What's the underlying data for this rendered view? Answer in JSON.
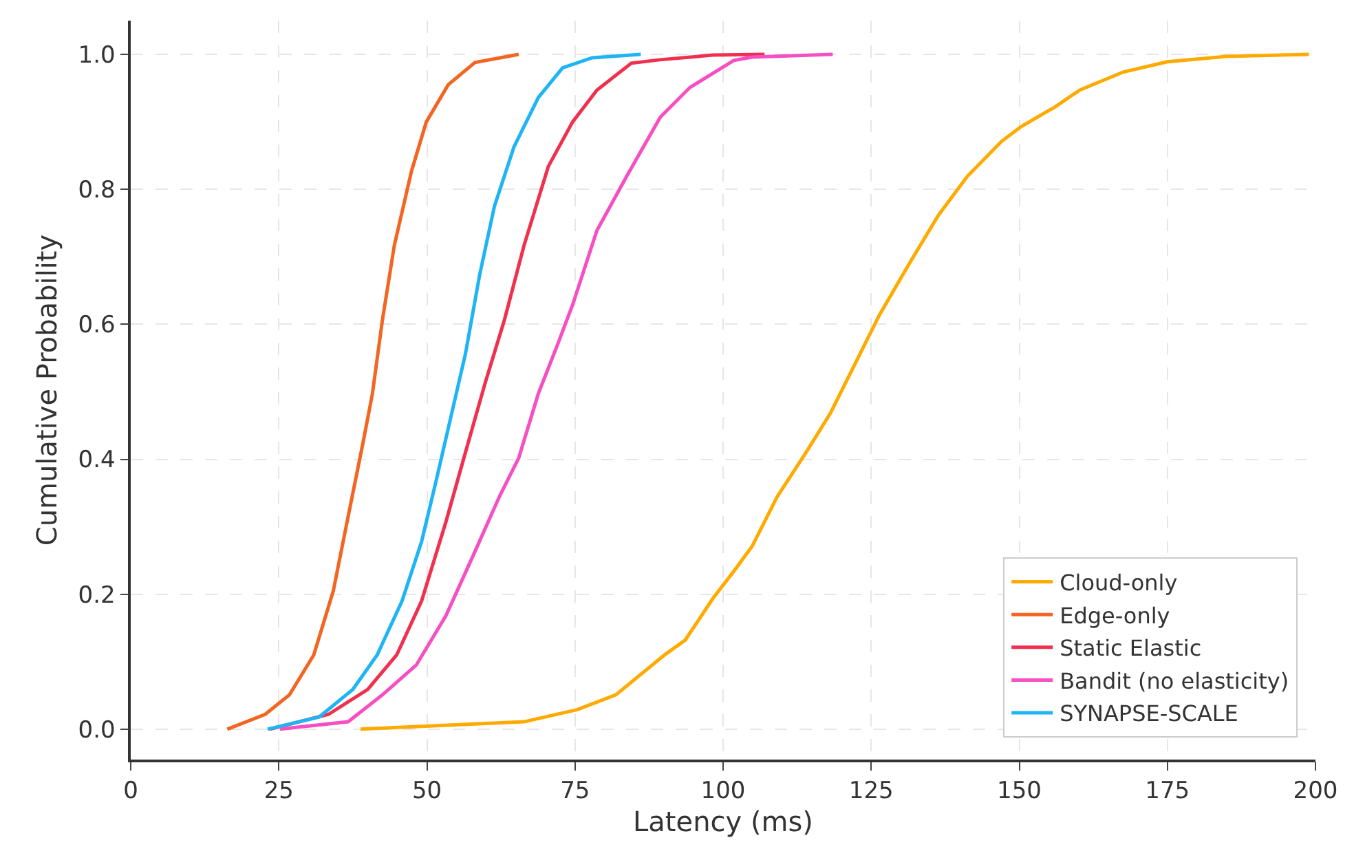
{
  "chart_data": {
    "type": "line",
    "xlabel": "Latency (ms)",
    "ylabel": "Cumulative Probability",
    "xlim": [
      0,
      200
    ],
    "xticks": [
      0,
      25,
      50,
      75,
      100,
      125,
      150,
      175,
      200
    ],
    "ylim": [
      -0.045,
      1.05
    ],
    "yticks": [
      {
        "value": 0,
        "label": "0.0"
      },
      {
        "value": 0.2,
        "label": "0.2"
      },
      {
        "value": 0.4,
        "label": "0.4"
      },
      {
        "value": 0.6,
        "label": "0.6"
      },
      {
        "value": 0.8,
        "label": "0.8"
      },
      {
        "value": 1,
        "label": "1.0"
      }
    ],
    "grid": true,
    "legend": "bottom right",
    "line_style": "solid",
    "marker": "none",
    "series": [
      {
        "name": "Cloud-only",
        "color": "#ffaa00",
        "x": [
          38.8,
          66.4,
          75.4,
          81.9,
          90.1,
          93.6,
          98.3,
          101.8,
          104.9,
          109.1,
          114.0,
          118.1,
          123.1,
          126.4,
          131.3,
          136.3,
          141.2,
          147.0,
          150.3,
          156.0,
          160.2,
          167.6,
          175.0,
          184.9,
          198.9
        ],
        "values": [
          0,
          0.011,
          0.029,
          0.051,
          0.11,
          0.132,
          0.194,
          0.234,
          0.271,
          0.344,
          0.41,
          0.468,
          0.556,
          0.614,
          0.688,
          0.761,
          0.819,
          0.871,
          0.893,
          0.922,
          0.947,
          0.974,
          0.989,
          0.997,
          1.0
        ]
      },
      {
        "name": "Edge-only",
        "color": "#f26522",
        "x": [
          16.3,
          22.7,
          26.8,
          30.9,
          34.2,
          36.7,
          39.2,
          40.8,
          42.5,
          44.5,
          47.4,
          49.9,
          53.6,
          58.1,
          65.5
        ],
        "values": [
          0,
          0.022,
          0.051,
          0.11,
          0.205,
          0.315,
          0.424,
          0.497,
          0.607,
          0.717,
          0.827,
          0.9,
          0.955,
          0.988,
          1.0
        ]
      },
      {
        "name": "Static Elastic",
        "color": "#f0304f",
        "x": [
          23.5,
          33.4,
          40.0,
          44.9,
          49.1,
          53.2,
          56.5,
          59.8,
          63.1,
          66.4,
          70.5,
          74.6,
          78.7,
          84.5,
          89.3,
          98.3,
          107.0
        ],
        "values": [
          0,
          0.022,
          0.059,
          0.11,
          0.19,
          0.307,
          0.41,
          0.512,
          0.607,
          0.717,
          0.834,
          0.9,
          0.947,
          0.987,
          0.992,
          0.999,
          1.0
        ]
      },
      {
        "name": "Bandit (no elasticity)",
        "color": "#f64fc3",
        "x": [
          25.2,
          36.7,
          42.5,
          48.2,
          53.2,
          58.1,
          62.2,
          65.5,
          68.8,
          72.1,
          74.6,
          78.7,
          83.7,
          89.4,
          94.4,
          101.8,
          104.9,
          118.5
        ],
        "values": [
          0,
          0.011,
          0.051,
          0.095,
          0.168,
          0.263,
          0.344,
          0.402,
          0.497,
          0.571,
          0.629,
          0.739,
          0.819,
          0.907,
          0.951,
          0.991,
          0.996,
          1.0
        ]
      },
      {
        "name": "SYNAPSE-SCALE",
        "color": "#1eb4f5",
        "x": [
          23.1,
          31.8,
          37.5,
          41.6,
          45.8,
          49.1,
          51.5,
          54.0,
          56.5,
          58.9,
          61.4,
          64.7,
          68.8,
          72.9,
          77.9,
          86.1
        ],
        "values": [
          0,
          0.018,
          0.059,
          0.11,
          0.19,
          0.278,
          0.366,
          0.461,
          0.556,
          0.673,
          0.775,
          0.863,
          0.936,
          0.98,
          0.995,
          1.0
        ]
      }
    ]
  }
}
